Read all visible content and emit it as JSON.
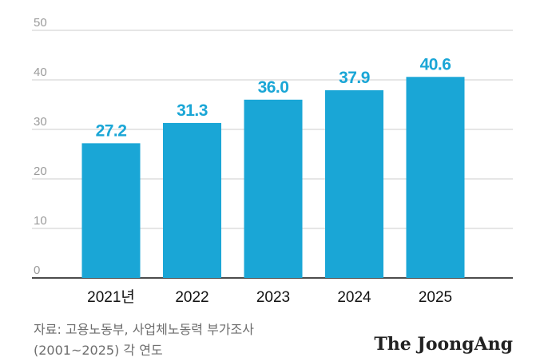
{
  "chart_data": {
    "type": "bar",
    "categories": [
      "2021년",
      "2022",
      "2023",
      "2024",
      "2025"
    ],
    "values": [
      27.2,
      31.3,
      36.0,
      37.9,
      40.6
    ],
    "value_labels": [
      "27.2",
      "31.3",
      "36.0",
      "37.9",
      "40.6"
    ],
    "ylim": [
      0,
      50
    ],
    "yticks": [
      "0",
      "10",
      "20",
      "30",
      "40",
      "50"
    ],
    "grid": true,
    "bar_color": "#1aa6d6",
    "label_color": "#1aa6d6",
    "title": "",
    "xlabel": "",
    "ylabel": ""
  },
  "source": {
    "line1": "자료: 고용노동부, 사업체노동력 부가조사",
    "line2": "(2001~2025) 각 연도"
  },
  "brand": "The JoongAng"
}
